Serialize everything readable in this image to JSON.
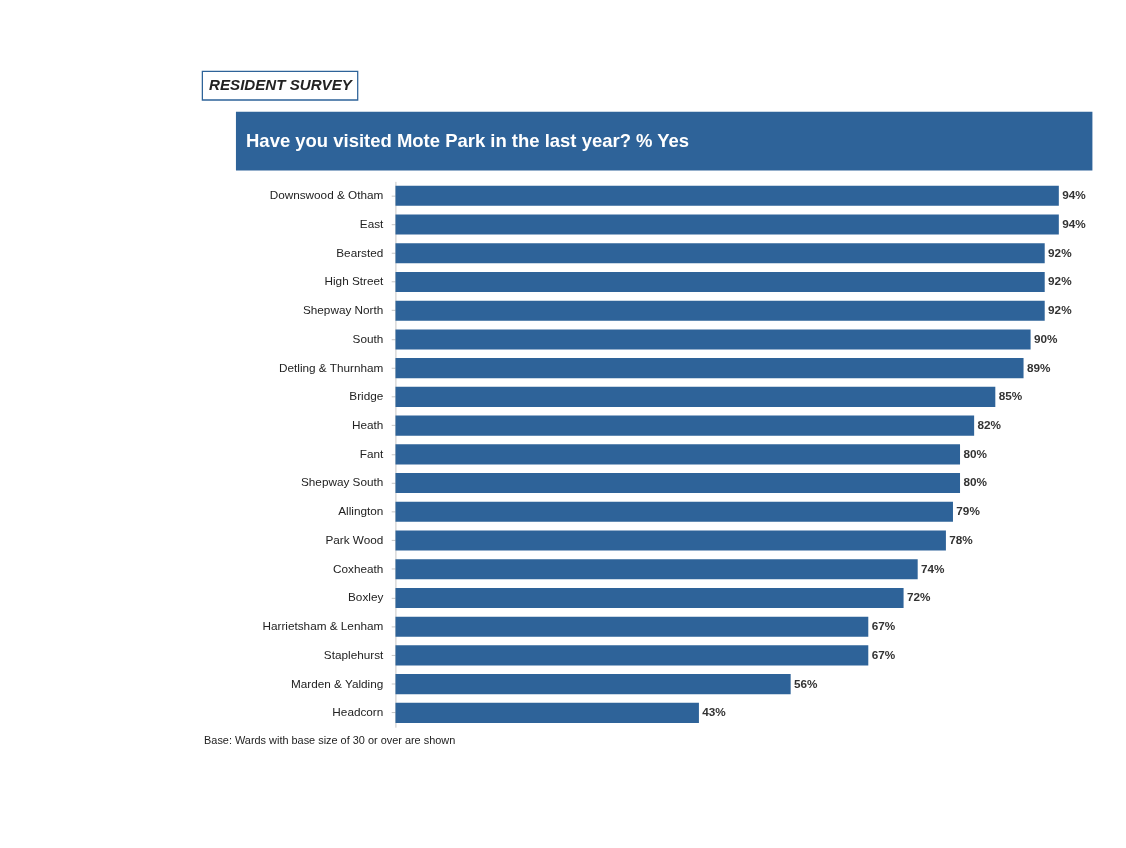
{
  "chart_data": {
    "type": "bar",
    "orientation": "horizontal",
    "title": "Have you visited Mote Park in the last year? % Yes",
    "categories": [
      "Downswood & Otham",
      "East",
      "Bearsted",
      "High Street",
      "Shepway North",
      "South",
      "Detling & Thurnham",
      "Bridge",
      "Heath",
      "Fant",
      "Shepway South",
      "Allington",
      "Park Wood",
      "Coxheath",
      "Boxley",
      "Harrietsham & Lenham",
      "Staplehurst",
      "Marden & Yalding",
      "Headcorn"
    ],
    "values": [
      94,
      94,
      92,
      92,
      92,
      90,
      89,
      85,
      82,
      80,
      80,
      79,
      78,
      74,
      72,
      67,
      67,
      56,
      43
    ],
    "value_labels": [
      "94%",
      "94%",
      "92%",
      "92%",
      "92%",
      "90%",
      "89%",
      "85%",
      "82%",
      "80%",
      "80%",
      "79%",
      "78%",
      "74%",
      "72%",
      "67%",
      "67%",
      "56%",
      "43%"
    ],
    "color": "#2e6399",
    "annotations": [
      "RESIDENT SURVEY",
      "Base: Wards with base size of 30 or over are shown"
    ]
  }
}
